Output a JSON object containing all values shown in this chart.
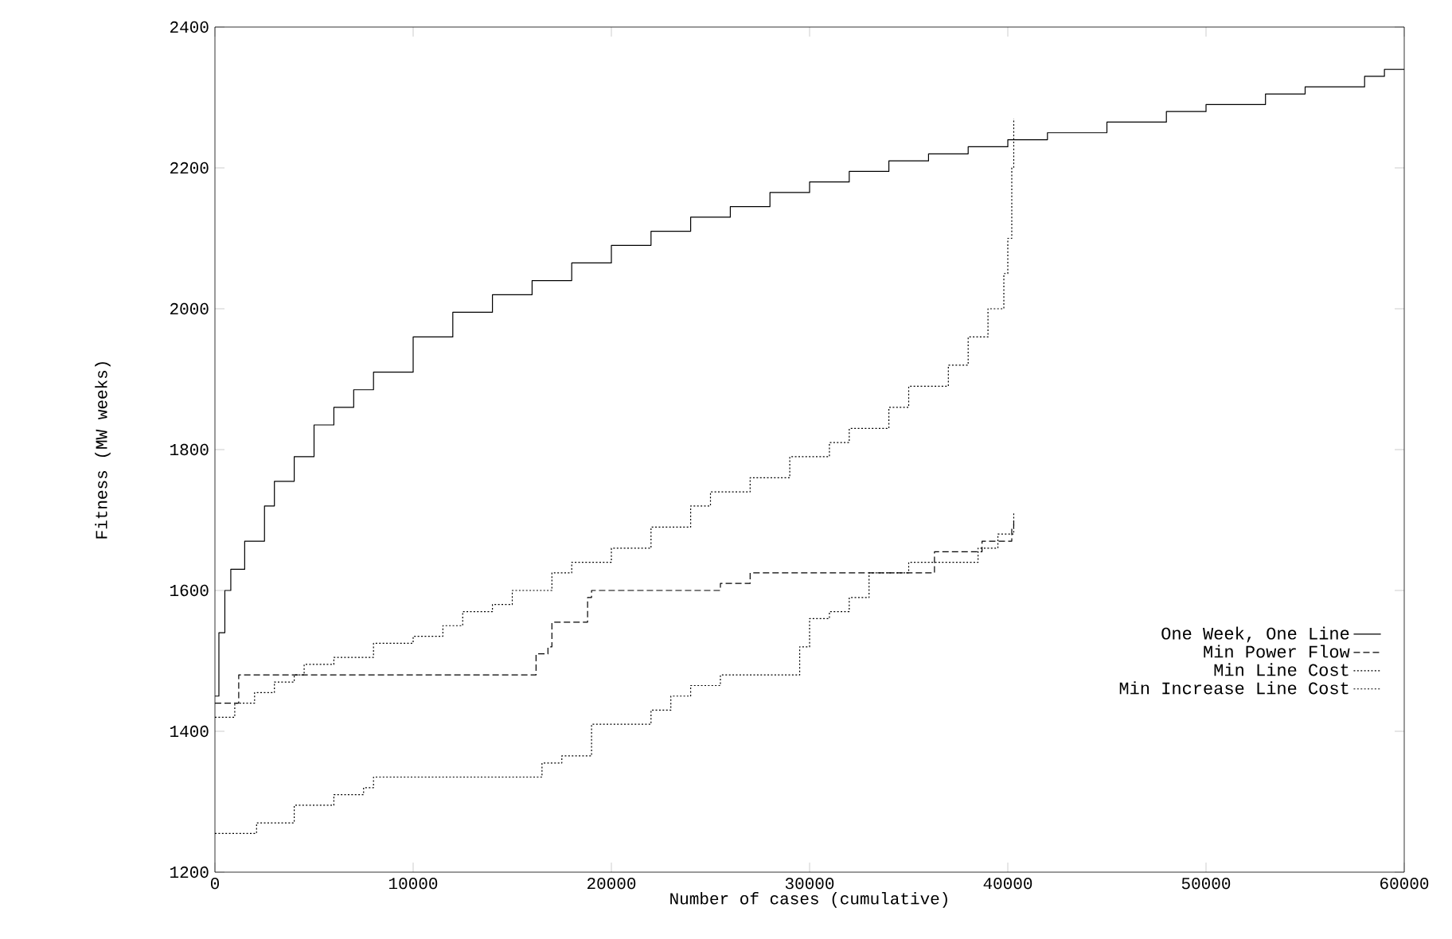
{
  "chart_data": {
    "type": "step",
    "xlabel": "Number of cases (cumulative)",
    "ylabel": "Fitness (MW weeks)",
    "xlim": [
      0,
      60000
    ],
    "xticks": [
      0,
      10000,
      20000,
      30000,
      40000,
      50000,
      60000
    ],
    "ylim": [
      1200,
      2400
    ],
    "yticks": [
      1200,
      1400,
      1600,
      1800,
      2000,
      2200,
      2400
    ],
    "grid": false,
    "legend": "bottom right",
    "series": [
      {
        "name": "One Week, One Line",
        "color": "#000000",
        "line_style": "solid",
        "x": [
          0,
          200,
          500,
          800,
          1500,
          2500,
          3000,
          4000,
          5000,
          6000,
          7000,
          8000,
          10000,
          12000,
          14000,
          16000,
          18000,
          20000,
          22000,
          24000,
          26000,
          28000,
          30000,
          32000,
          34000,
          36000,
          38000,
          40000,
          42000,
          45000,
          48000,
          50000,
          53000,
          55000,
          58000,
          59000,
          60000
        ],
        "values": [
          1450,
          1540,
          1600,
          1630,
          1670,
          1720,
          1755,
          1790,
          1835,
          1860,
          1885,
          1910,
          1960,
          1995,
          2020,
          2040,
          2065,
          2090,
          2110,
          2130,
          2145,
          2165,
          2180,
          2195,
          2210,
          2220,
          2230,
          2240,
          2250,
          2265,
          2280,
          2290,
          2305,
          2315,
          2330,
          2340,
          2340
        ]
      },
      {
        "name": "Min Power Flow",
        "color": "#000000",
        "line_style": "dashed",
        "x": [
          0,
          1200,
          16200,
          16800,
          17000,
          18800,
          19000,
          25500,
          27000,
          36300,
          38700,
          40200,
          40300
        ],
        "values": [
          1440,
          1480,
          1510,
          1520,
          1555,
          1590,
          1600,
          1610,
          1625,
          1655,
          1670,
          1690,
          1700
        ]
      },
      {
        "name": "Min Line Cost",
        "color": "#000000",
        "line_style": "dotted",
        "x": [
          0,
          1000,
          2000,
          3000,
          4000,
          4500,
          6000,
          8000,
          10000,
          11500,
          12500,
          14000,
          15000,
          17000,
          18000,
          20000,
          22000,
          24000,
          25000,
          27000,
          29000,
          31000,
          32000,
          34000,
          35000,
          37000,
          38000,
          39000,
          39800,
          40000,
          40200,
          40300
        ],
        "values": [
          1420,
          1440,
          1455,
          1470,
          1480,
          1495,
          1505,
          1525,
          1535,
          1550,
          1570,
          1580,
          1600,
          1625,
          1640,
          1660,
          1690,
          1720,
          1740,
          1760,
          1790,
          1810,
          1830,
          1860,
          1890,
          1920,
          1960,
          2000,
          2050,
          2100,
          2200,
          2270
        ]
      },
      {
        "name": "Min Increase Line Cost",
        "color": "#000000",
        "line_style": "dotted",
        "x": [
          0,
          2100,
          4000,
          6000,
          7500,
          8000,
          16500,
          17500,
          19000,
          22000,
          23000,
          24000,
          25500,
          29500,
          30000,
          31000,
          32000,
          33000,
          35000,
          38500,
          39500,
          40300
        ],
        "values": [
          1255,
          1270,
          1295,
          1310,
          1320,
          1335,
          1355,
          1365,
          1410,
          1430,
          1450,
          1465,
          1480,
          1520,
          1560,
          1570,
          1590,
          1625,
          1640,
          1660,
          1680,
          1710
        ]
      }
    ]
  }
}
